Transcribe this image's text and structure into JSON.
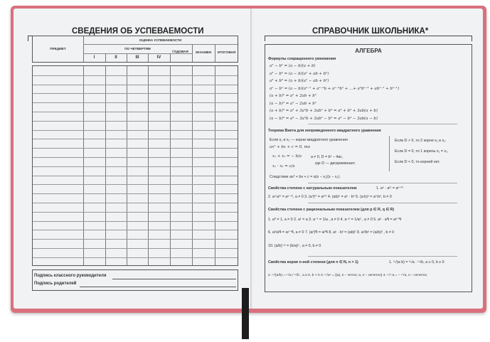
{
  "left": {
    "title": "СВЕДЕНИЯ ОБ УСПЕВАЕМОСТИ",
    "header": {
      "subject": "ПРЕДМЕТ",
      "grades": "ОЦЕНКА УСПЕВАЕМОСТИ",
      "quarters": "ПО ЧЕТВЕРТЯМ",
      "q": [
        "I",
        "II",
        "III",
        "IV"
      ],
      "year": "ГОДОВАЯ",
      "exam": "ЭКЗАМЕН",
      "final": "ИТОГОВАЯ"
    },
    "sig_teacher": "Подпись классного руководителя",
    "sig_parents": "Подпись родителей"
  },
  "right": {
    "title": "СПРАВОЧНИК ШКОЛЬНИКА*",
    "section": "АЛГЕБРА",
    "abbr_title": "Формулы сокращенного умножения",
    "abbr": [
      "a² − b² = (a − b)(a + b)",
      "a³ − b³ = (a − b)(a² + ab + b²)",
      "a³ + b³ = (a + b)(a² − ab + b²)",
      "aⁿ − bⁿ = (a − b)(aⁿ⁻¹ + aⁿ⁻²b + aⁿ⁻³b² + …+ a²bⁿ⁻³ + abⁿ⁻² + bⁿ⁻¹)",
      "(a + b)² = a² + 2ab + b²",
      "(a − b)² = a² − 2ab + b²",
      "(a + b)³ = a³ + 3a²b + 3ab² + b³ = a³ + b³ + 3ab(a + b)",
      "(a − b)³ = a³ − 3a²b + 3ab² − b³ = a³ − b³ − 3ab(a − b)"
    ],
    "vieta_title": "Теорема Виета для неприведенного квадратного уравнения",
    "vieta": [
      "Если x₁ и x₂ — корни квадратного уравнения",
      "ax² + bx + c = 0, то",
      "x₁ + x₂ = − b/a",
      "x₁ · x₂ = c/a",
      "a ≠ 0, D = b² − 4ac,",
      "где D — дискриминант.",
      "Следствие  ax² + bx + c = a(x − x₁)(x − x₂)."
    ],
    "disc": [
      "Если D > 0, то 2 корня x₁ и x₂.",
      "Если D = 0, то 1 корень x₁ = x₂.",
      "Если D < 0, то корней нет."
    ],
    "nat_title": "Свойства степени с натуральным показателем",
    "nat1": "1. aⁿ · aᵐ = aⁿ⁺ᵐ",
    "nat": "2. aⁿ:aᵐ = aⁿ⁻ᵐ, a ≠ 0  3. (aⁿ)ᵐ = aⁿᵐ  4. (ab)ⁿ = aⁿ · bⁿ  5. (a:b)ⁿ = aⁿ:bⁿ, b ≠ 0",
    "rat_title": "Свойства степени с рациональным показателем (для p ∈ R, q ∈ R)",
    "rat": [
      "1. a⁰ = 1, a ≠ 0   2. a¹ = a   3. a⁻¹ = 1/a , a ≠ 0   4. a⁻ᵖ = 1/aᵖ , a ≠ 0   5. aᵖ · aᑫ = aᵖ⁺ᑫ",
      "6. aᵖ/aᑫ = aᵖ⁻ᑫ, a ≠ 0   7. (aᵖ)ᑫ = aᵖᑫ   8. aᵖ · bᵖ = (ab)ᵖ   9. aᵖ/bᵖ = (a/b)ᵖ , b ≠ 0",
      "10. (a/b)⁻ᵖ = (b/a)ᵖ , a ≠ 0, b ≠ 0"
    ],
    "root_title": "Свойства корня n-ной степени (для n ∈ N, n > 1)",
    "root1": "1. ⁿ√(a·b) = ⁿ√a · ⁿ√b,  a ≥ 0,  b ≥ 0",
    "root": "2. ⁿ√(a/b) = ⁿ√a / ⁿ√b , a ≥ 0, b > 0   3. ⁿ√aⁿ = {|a|, n – четно; a, n – нечетно}   4. ⁿ√−a = − ⁿ√a, n – нечетно"
  },
  "colors": {
    "cover": "#d9707e",
    "page": "#f1f2f3",
    "ribbon": "#1d1d1d"
  }
}
